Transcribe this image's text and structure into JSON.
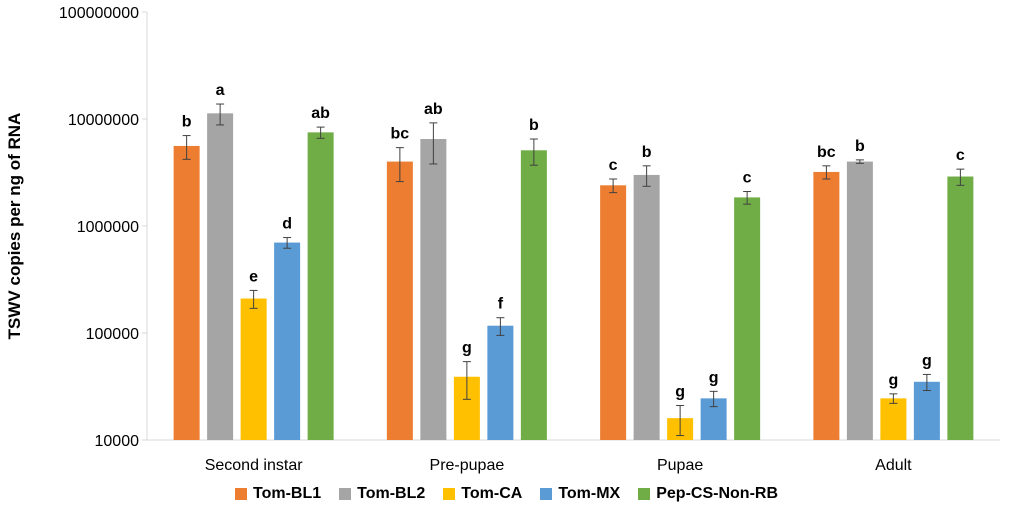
{
  "chart_data": {
    "type": "bar",
    "scale": "log",
    "title": "",
    "xlabel": "",
    "ylabel": "TSWV copies per ng of RNA",
    "ylim": [
      10000,
      100000000
    ],
    "yticks": [
      "10000",
      "100000",
      "1000000",
      "10000000",
      "100000000"
    ],
    "grid": false,
    "legend_position": "bottom",
    "categories": [
      "Second instar",
      "Pre-pupae",
      "Pupae",
      "Adult"
    ],
    "series": [
      {
        "name": "Tom-BL1",
        "color": "#ED7D31",
        "values": [
          5600000,
          4000000,
          2400000,
          3200000
        ],
        "errors": [
          1400000,
          1400000,
          350000,
          450000
        ],
        "labels": [
          "b",
          "bc",
          "c",
          "bc"
        ]
      },
      {
        "name": "Tom-BL2",
        "color": "#A5A5A5",
        "values": [
          11300000,
          6500000,
          3000000,
          4000000
        ],
        "errors": [
          2500000,
          2700000,
          650000,
          150000
        ],
        "labels": [
          "a",
          "ab",
          "b",
          "b"
        ]
      },
      {
        "name": "Tom-CA",
        "color": "#FFC000",
        "values": [
          210000,
          39000,
          16000,
          24500
        ],
        "errors": [
          40000,
          15000,
          5000,
          2500
        ],
        "labels": [
          "e",
          "g",
          "g",
          "g"
        ]
      },
      {
        "name": "Tom-MX",
        "color": "#5B9BD5",
        "values": [
          700000,
          117000,
          24500,
          35000
        ],
        "errors": [
          80000,
          22000,
          4000,
          6000
        ],
        "labels": [
          "d",
          "f",
          "g",
          "g"
        ]
      },
      {
        "name": "Pep-CS-Non-RB",
        "color": "#70AD47",
        "values": [
          7500000,
          5100000,
          1850000,
          2900000
        ],
        "errors": [
          900000,
          1400000,
          250000,
          500000
        ],
        "labels": [
          "ab",
          "b",
          "c",
          "c"
        ]
      }
    ]
  }
}
